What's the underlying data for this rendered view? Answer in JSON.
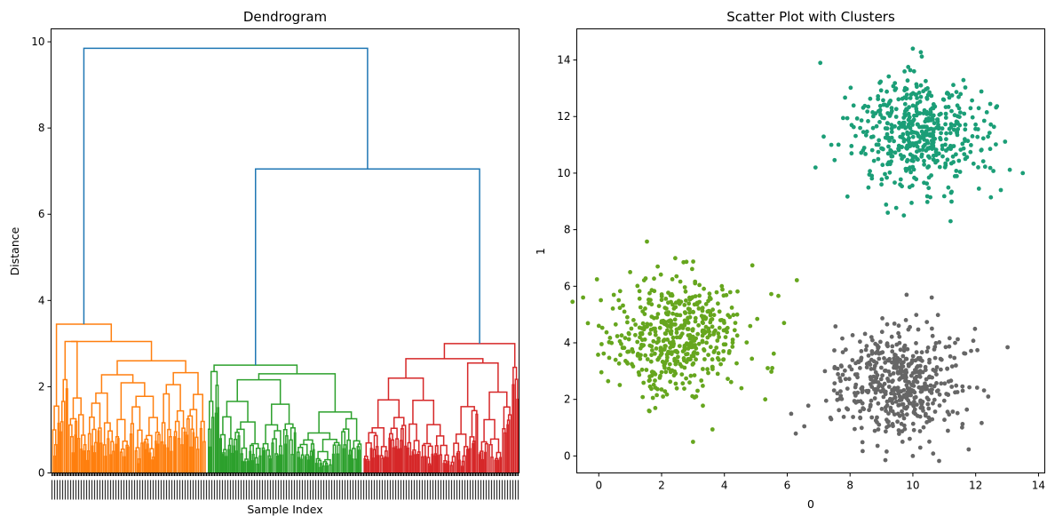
{
  "chart_data": [
    {
      "type": "dendrogram",
      "title": "Dendrogram",
      "xlabel": "Sample Index",
      "ylabel": "Distance",
      "ylim": [
        0,
        10.3
      ],
      "yticks": [
        0,
        2,
        4,
        6,
        8,
        10
      ],
      "xtick_labels": "dense, unreadable leaf indices",
      "colors": {
        "link_above_threshold": "#1f77b4",
        "cluster1": "#ff7f0e",
        "cluster2": "#2ca02c",
        "cluster3": "#d62728"
      },
      "merges": [
        {
          "name": "root",
          "height": 9.85,
          "color": "#1f77b4"
        },
        {
          "name": "cluster2+cluster3",
          "height": 7.05,
          "color": "#1f77b4"
        },
        {
          "name": "cluster1 top",
          "height": 3.45,
          "color": "#ff7f0e"
        },
        {
          "name": "cluster2 top",
          "height": 2.5,
          "color": "#2ca02c"
        },
        {
          "name": "cluster3 top",
          "height": 3.0,
          "color": "#d62728"
        }
      ],
      "clusters": [
        {
          "name": "cluster1",
          "color": "#ff7f0e",
          "leaf_fraction": 0.333,
          "top_height": 3.45,
          "sub_merges": [
            3.05,
            2.6,
            2.05,
            1.95,
            1.8,
            1.65,
            1.5,
            1.45,
            1.4,
            1.3,
            1.25,
            1.2,
            1.0,
            0.9,
            0.8,
            0.7
          ]
        },
        {
          "name": "cluster2",
          "color": "#2ca02c",
          "leaf_fraction": 0.333,
          "top_height": 2.5,
          "sub_merges": [
            2.4,
            2.3,
            2.0,
            1.85,
            1.55,
            1.5,
            1.4,
            1.3,
            1.15,
            1.1,
            1.0,
            0.9,
            0.8,
            0.7,
            0.6
          ]
        },
        {
          "name": "cluster3",
          "color": "#d62728",
          "leaf_fraction": 0.334,
          "top_height": 3.0,
          "sub_merges": [
            2.65,
            2.4,
            2.2,
            2.0,
            1.9,
            1.6,
            1.5,
            1.45,
            1.3,
            1.2,
            1.1,
            1.0,
            0.9,
            0.8,
            0.6
          ]
        }
      ]
    },
    {
      "type": "scatter",
      "title": "Scatter Plot with Clusters",
      "xlabel": "0",
      "ylabel": "1",
      "xlim": [
        -0.7,
        14.2
      ],
      "ylim": [
        -0.6,
        15.1
      ],
      "xticks": [
        0,
        2,
        4,
        6,
        8,
        10,
        12,
        14
      ],
      "yticks": [
        0,
        2,
        4,
        6,
        8,
        10,
        12,
        14
      ],
      "series": [
        {
          "color": "#1b9e77",
          "center": [
            10.2,
            11.4
          ],
          "spread": [
            1.0,
            1.0
          ],
          "count": 500,
          "extremes": [
            [
              6.9,
              10.2
            ],
            [
              13.5,
              10.0
            ],
            [
              10.0,
              14.4
            ],
            [
              11.2,
              8.3
            ],
            [
              9.2,
              8.6
            ],
            [
              12.8,
              9.4
            ]
          ]
        },
        {
          "color": "#66a61e",
          "center": [
            2.5,
            4.2
          ],
          "spread": [
            1.0,
            1.0
          ],
          "count": 500,
          "extremes": [
            [
              0.0,
              4.6
            ],
            [
              5.9,
              4.7
            ],
            [
              3.0,
              0.5
            ],
            [
              1.6,
              1.6
            ],
            [
              5.3,
              2.0
            ],
            [
              1.0,
              6.5
            ]
          ]
        },
        {
          "color": "#666666",
          "center": [
            9.5,
            2.6
          ],
          "spread": [
            1.0,
            1.0
          ],
          "count": 500,
          "extremes": [
            [
              7.4,
              1.3
            ],
            [
              12.4,
              2.1
            ],
            [
              10.0,
              0.0
            ],
            [
              9.8,
              5.7
            ],
            [
              10.6,
              5.6
            ],
            [
              7.2,
              3.0
            ]
          ]
        }
      ],
      "marker_size": 3
    }
  ]
}
